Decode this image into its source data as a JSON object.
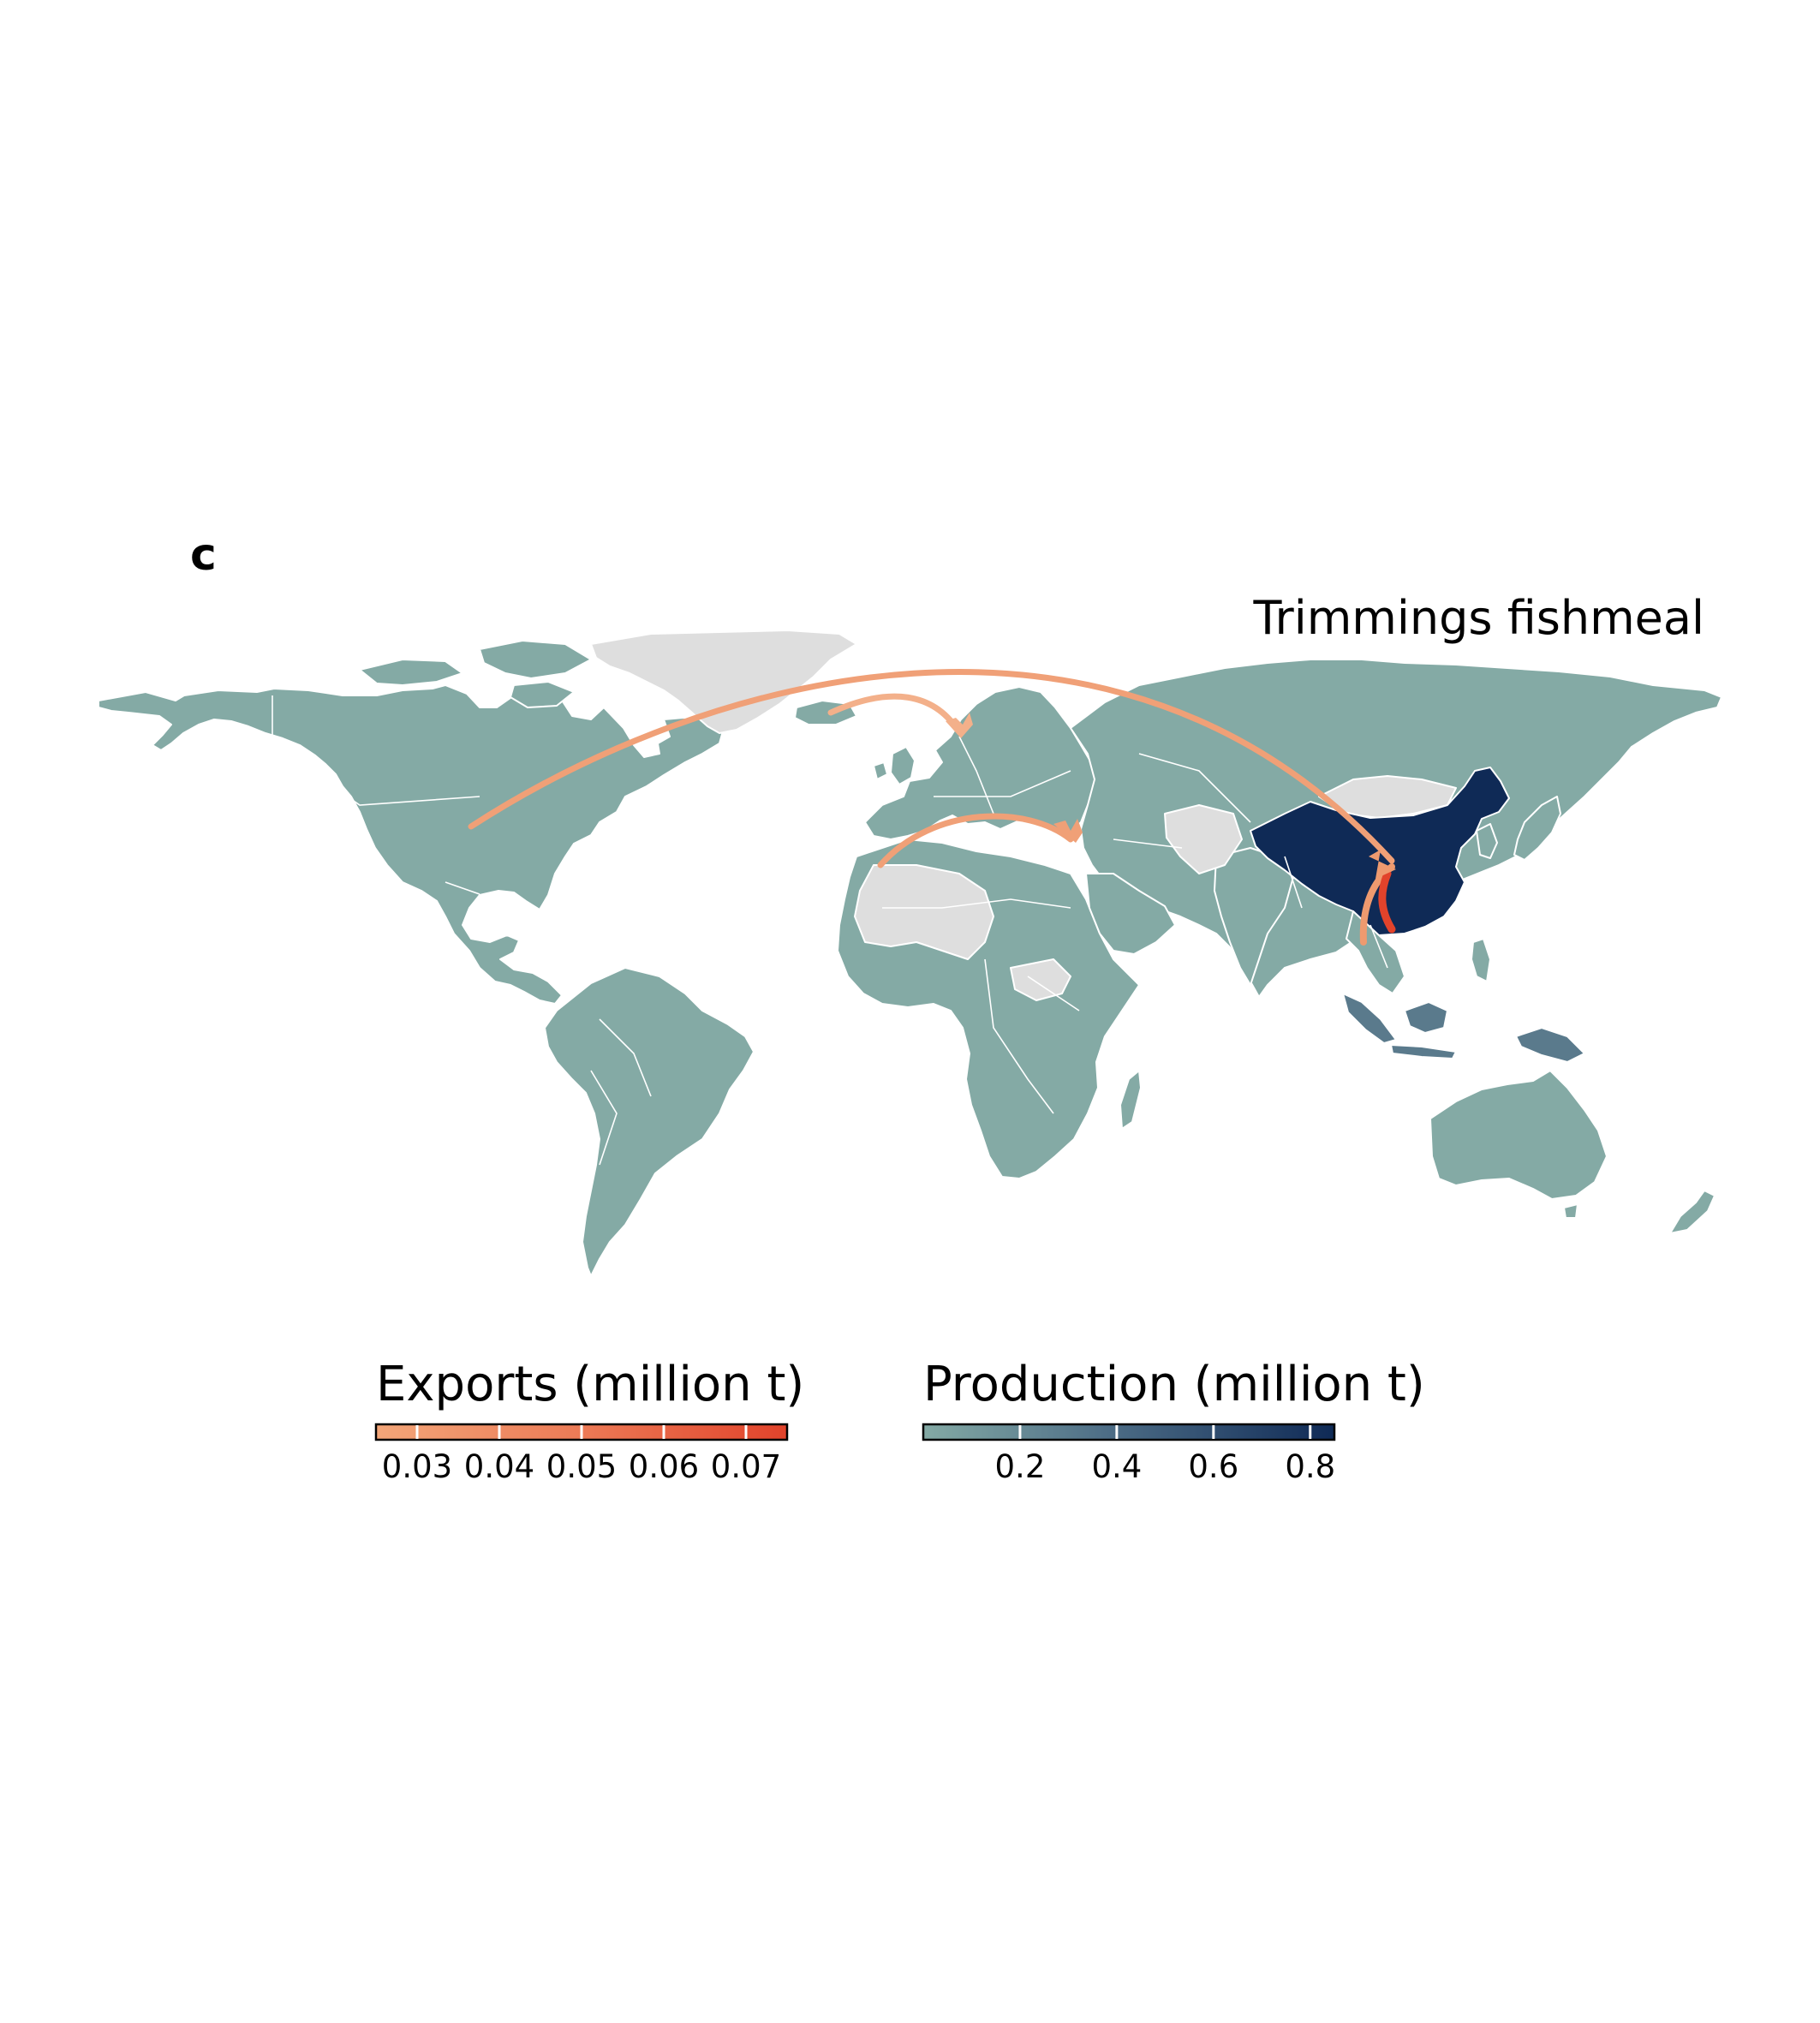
{
  "panel_letter": "c",
  "title": "Trimmings fishmeal",
  "colors": {
    "production_low": "#84aaa5",
    "production_mid": "#5a7a8c",
    "production_high": "#0f2a56",
    "no_data": "#dedede",
    "exports_low": "#f3a679",
    "exports_high": "#e2432b",
    "borders": "#ffffff"
  },
  "flows": [
    {
      "from": "United States",
      "to": "China",
      "value": 0.035
    },
    {
      "from": "Iceland",
      "to": "Norway",
      "value": 0.03
    },
    {
      "from": "Morocco",
      "to": "Turkey",
      "value": 0.035
    },
    {
      "from": "Thailand",
      "to": "China",
      "value": 0.045
    },
    {
      "from": "Vietnam",
      "to": "China",
      "value": 0.07
    }
  ],
  "legends": {
    "exports": {
      "title": "Exports (million t)",
      "min": 0.025,
      "max": 0.075,
      "ticks": [
        0.03,
        0.04,
        0.05,
        0.06,
        0.07
      ],
      "tick_labels": [
        "0.03",
        "0.04",
        "0.05",
        "0.06",
        "0.07"
      ]
    },
    "production": {
      "title": "Production (million t)",
      "min": 0,
      "max": 0.85,
      "ticks": [
        0.2,
        0.4,
        0.6,
        0.8
      ],
      "tick_labels": [
        "0.2",
        "0.4",
        "0.6",
        "0.8"
      ]
    }
  }
}
